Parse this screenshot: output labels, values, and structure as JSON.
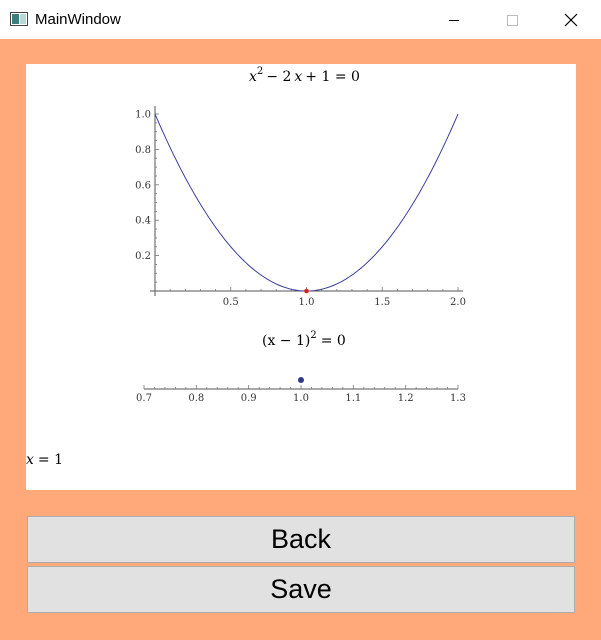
{
  "window": {
    "title": "MainWindow",
    "icons": {
      "app": "app-window-icon",
      "minimize": "minimize-icon",
      "maximize": "maximize-icon",
      "close": "close-icon"
    }
  },
  "colors": {
    "background": "#ffa87a",
    "curve": "#3b3f9a",
    "root_point": "#d62020",
    "number_line_point": "#2d3a8c",
    "button_face": "#e1e1e1"
  },
  "equations": {
    "original": {
      "a": "x",
      "b": "2",
      "m1": "− 2",
      "c": "x",
      "rest": "+ 1 = 0"
    },
    "factored": {
      "base": "(x − 1)",
      "exp": "2",
      "rest": "= 0"
    },
    "solution": {
      "lhs": "x",
      "rest": "= 1"
    }
  },
  "chart_data": [
    {
      "type": "line",
      "function": "x^2 - 2x + 1",
      "x": [
        0.0,
        0.25,
        0.5,
        0.75,
        1.0,
        1.25,
        1.5,
        1.75,
        2.0
      ],
      "y": [
        1.0,
        0.5625,
        0.25,
        0.0625,
        0.0,
        0.0625,
        0.25,
        0.5625,
        1.0
      ],
      "xlim": [
        0.0,
        2.0
      ],
      "ylim": [
        0.0,
        1.0
      ],
      "x_ticks": [
        "0.5",
        "1.0",
        "1.5",
        "2.0"
      ],
      "y_ticks": [
        "0.2",
        "0.4",
        "0.6",
        "0.8",
        "1.0"
      ],
      "highlight_point": {
        "x": 1.0,
        "y": 0.0
      }
    },
    {
      "type": "scatter",
      "x": [
        1.0
      ],
      "xlim": [
        0.7,
        1.3
      ],
      "x_ticks": [
        "0.7",
        "0.8",
        "0.9",
        "1.0",
        "1.1",
        "1.2",
        "1.3"
      ]
    }
  ],
  "buttons": {
    "back": "Back",
    "save": "Save"
  }
}
